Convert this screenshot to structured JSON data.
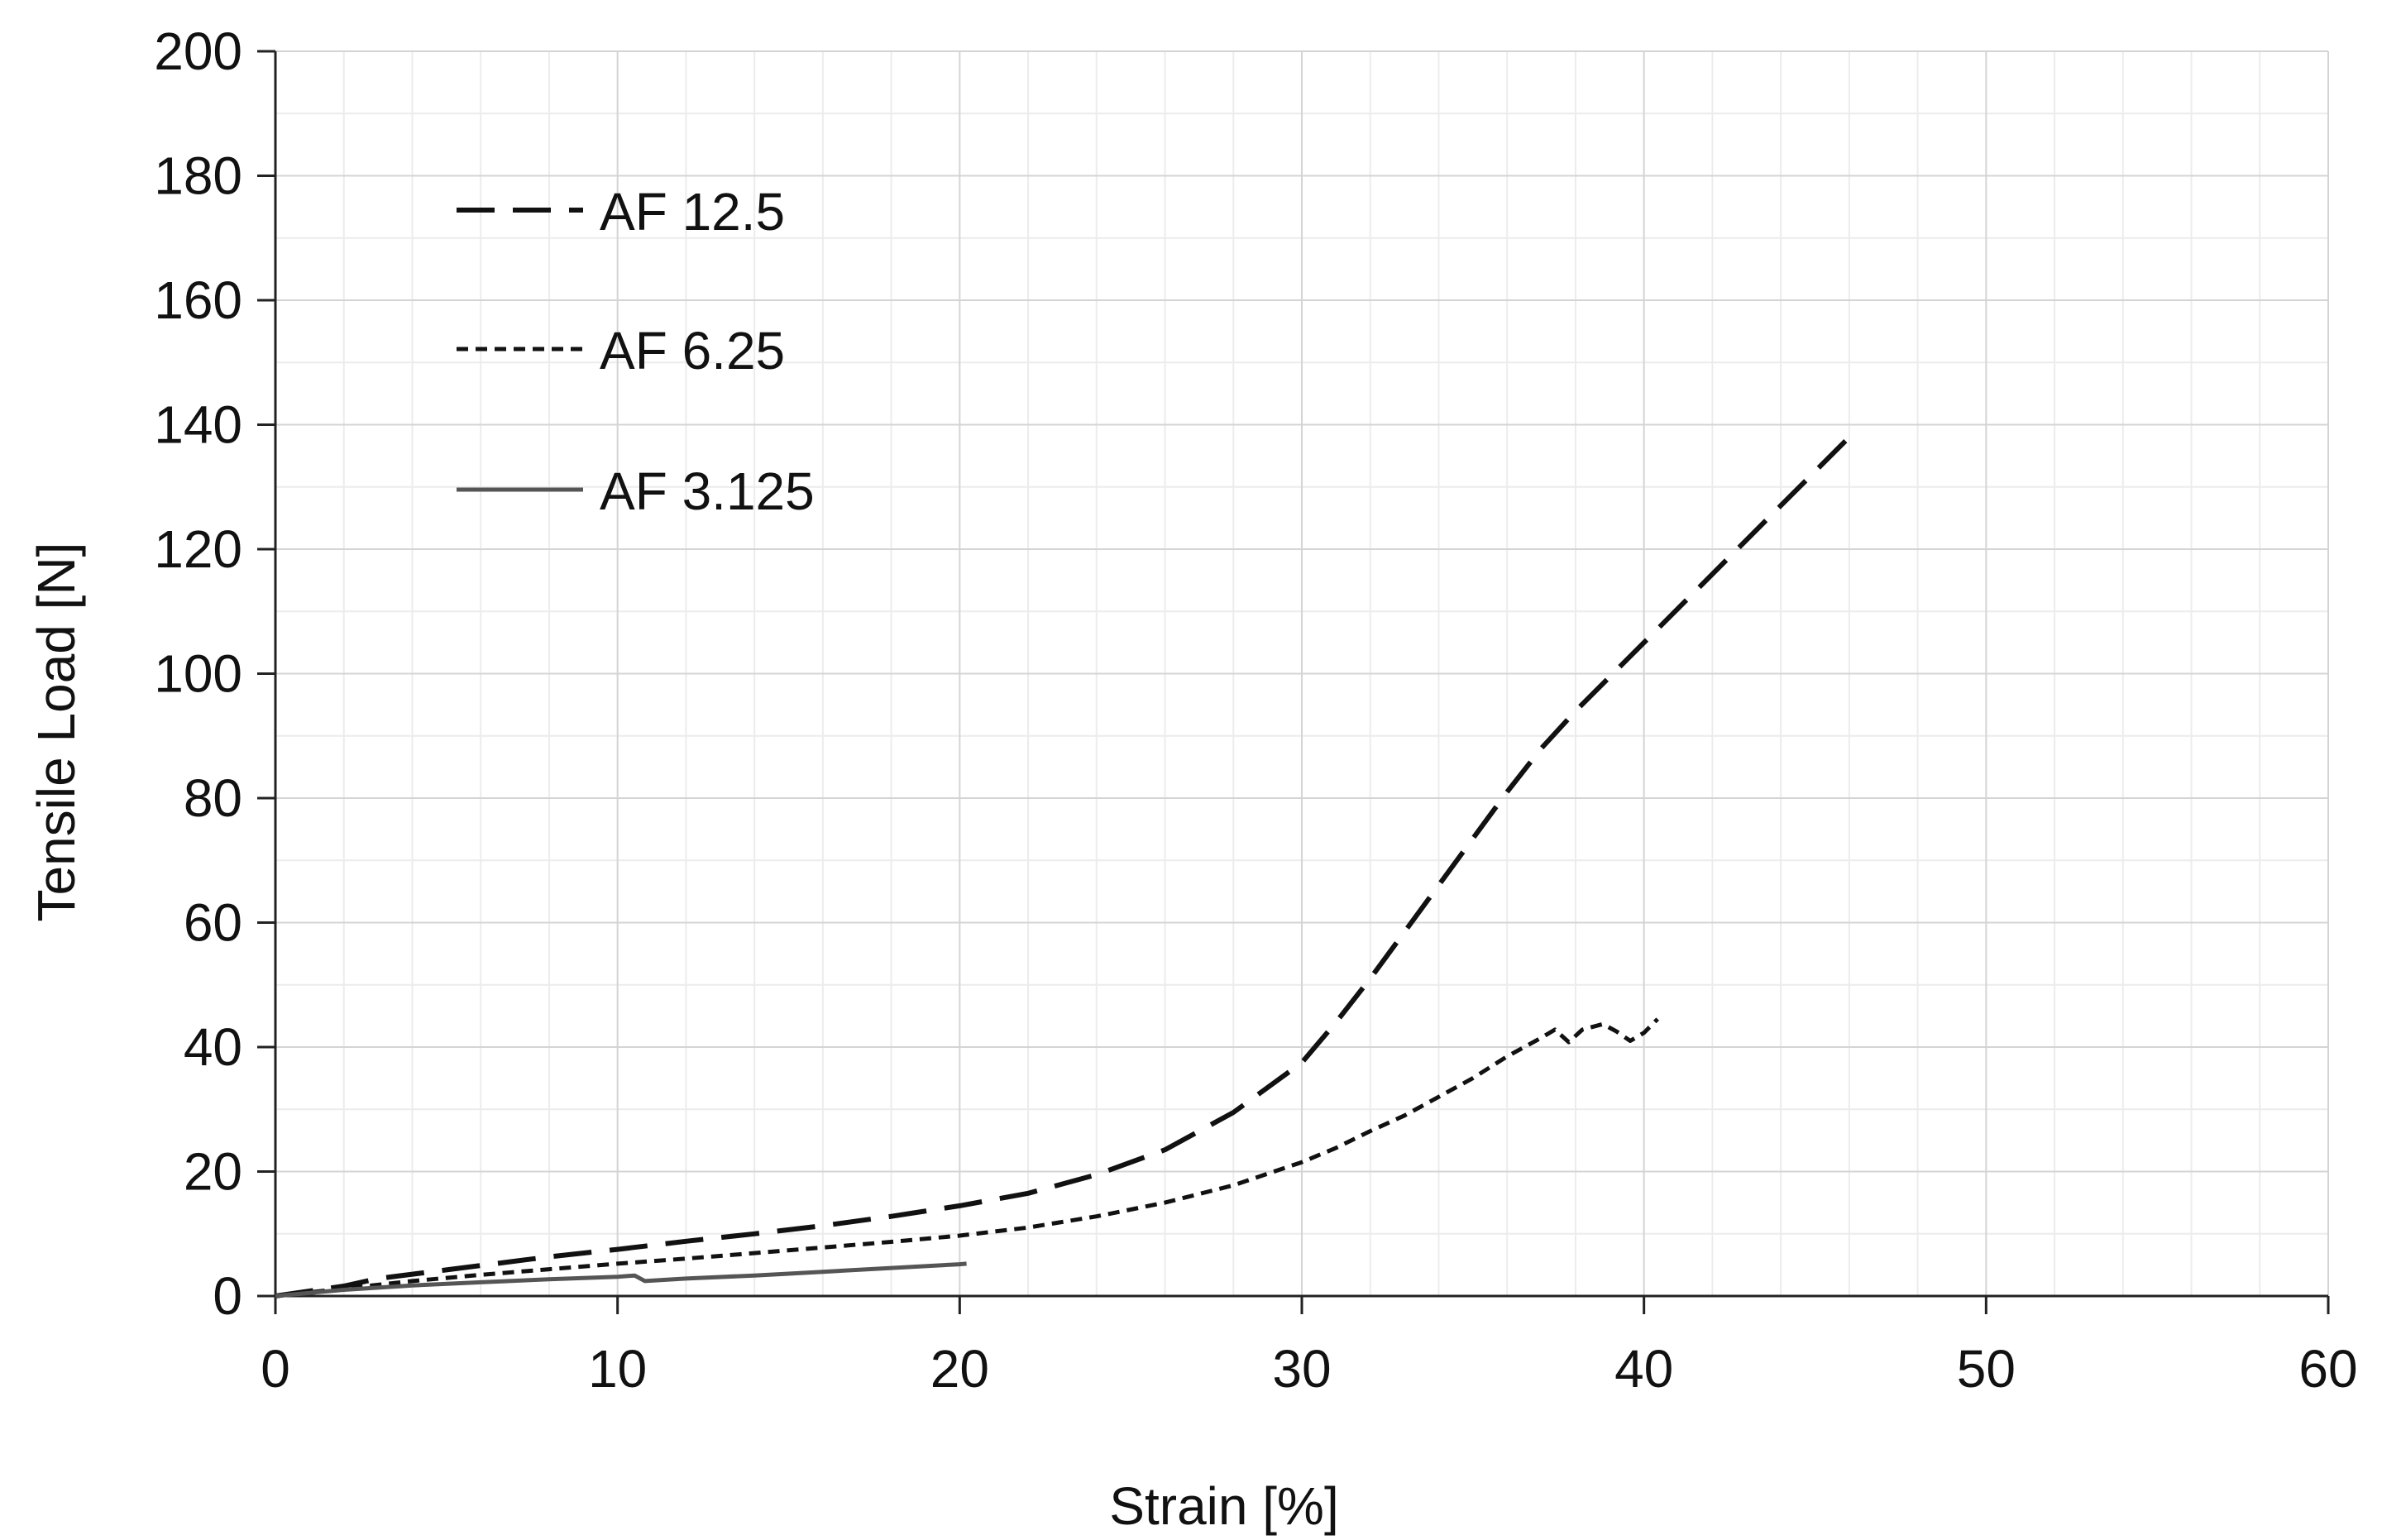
{
  "chart_data": {
    "type": "line",
    "title": "",
    "xlabel": "Strain [%]",
    "ylabel": "Tensile Load [N]",
    "xlim": [
      0,
      60
    ],
    "ylim": [
      0,
      200
    ],
    "x_ticks": [
      0,
      10,
      20,
      30,
      40,
      50,
      60
    ],
    "y_ticks": [
      0,
      20,
      40,
      60,
      80,
      100,
      120,
      140,
      160,
      180,
      200
    ],
    "x_tick_labels": [
      "0",
      "10",
      "20",
      "30",
      "40",
      "50",
      "60"
    ],
    "y_tick_labels": [
      "0",
      "20",
      "40",
      "60",
      "80",
      "100",
      "120",
      "140",
      "160",
      "180",
      "200"
    ],
    "grid": true,
    "minor_grid": true,
    "legend_position": "top-left",
    "series": [
      {
        "name": "AF 12.5",
        "style": "long-dash",
        "color": "#111111",
        "points": [
          [
            0,
            0
          ],
          [
            1,
            0.8
          ],
          [
            2,
            1.6
          ],
          [
            3,
            2.8
          ],
          [
            5,
            4.2
          ],
          [
            8,
            6.3
          ],
          [
            10,
            7.5
          ],
          [
            12,
            8.8
          ],
          [
            14,
            10
          ],
          [
            16,
            11.3
          ],
          [
            18,
            12.8
          ],
          [
            20,
            14.5
          ],
          [
            22,
            16.5
          ],
          [
            24,
            19.5
          ],
          [
            26,
            23.5
          ],
          [
            28,
            29.5
          ],
          [
            30,
            37.5
          ],
          [
            31,
            44
          ],
          [
            32,
            51
          ],
          [
            33,
            58.5
          ],
          [
            34,
            66
          ],
          [
            35,
            73.5
          ],
          [
            36,
            81
          ],
          [
            37,
            88
          ],
          [
            38,
            94
          ],
          [
            40,
            105
          ],
          [
            42,
            116
          ],
          [
            44,
            127
          ],
          [
            46,
            138
          ]
        ]
      },
      {
        "name": "AF 6.25",
        "style": "short-dash",
        "color": "#111111",
        "points": [
          [
            0,
            0
          ],
          [
            2,
            1.2
          ],
          [
            4,
            2.4
          ],
          [
            6,
            3.4
          ],
          [
            8,
            4.3
          ],
          [
            10,
            5.2
          ],
          [
            12,
            6
          ],
          [
            14,
            6.9
          ],
          [
            16,
            7.8
          ],
          [
            18,
            8.7
          ],
          [
            20,
            9.7
          ],
          [
            22,
            11
          ],
          [
            24,
            12.8
          ],
          [
            26,
            15
          ],
          [
            28,
            17.8
          ],
          [
            30,
            21.5
          ],
          [
            31,
            23.8
          ],
          [
            32,
            26.5
          ],
          [
            33,
            29
          ],
          [
            34,
            32
          ],
          [
            35,
            35
          ],
          [
            36,
            38.5
          ],
          [
            37,
            41.5
          ],
          [
            37.4,
            42.8
          ],
          [
            37.8,
            40.8
          ],
          [
            38.2,
            42.8
          ],
          [
            38.8,
            43.7
          ],
          [
            39.2,
            42.5
          ],
          [
            39.6,
            41
          ],
          [
            40,
            42.3
          ],
          [
            40.4,
            44.5
          ]
        ]
      },
      {
        "name": "AF 3.125",
        "style": "solid",
        "color": "#555555",
        "points": [
          [
            0,
            0
          ],
          [
            2,
            1
          ],
          [
            4,
            1.7
          ],
          [
            6,
            2.2
          ],
          [
            8,
            2.7
          ],
          [
            10,
            3.1
          ],
          [
            10.5,
            3.3
          ],
          [
            10.8,
            2.4
          ],
          [
            12,
            2.8
          ],
          [
            14,
            3.3
          ],
          [
            16,
            3.9
          ],
          [
            18,
            4.5
          ],
          [
            20,
            5.1
          ],
          [
            20.2,
            5.2
          ]
        ]
      }
    ]
  }
}
